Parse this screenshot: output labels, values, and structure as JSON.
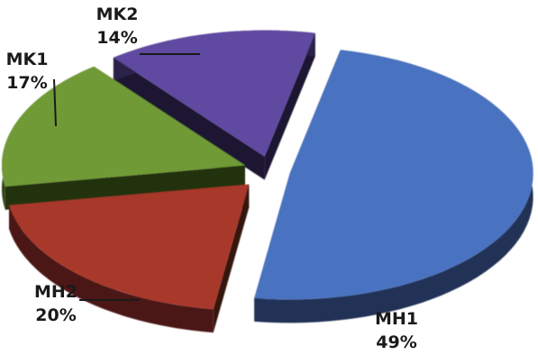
{
  "chart_data": {
    "type": "pie",
    "style": "3d-exploded",
    "slices": [
      {
        "name": "MH1",
        "value": 49,
        "label": "49%",
        "color": "#4a72c0"
      },
      {
        "name": "MH2",
        "value": 20,
        "label": "20%",
        "color": "#a8382a"
      },
      {
        "name": "MK1",
        "value": 17,
        "label": "17%",
        "color": "#6f9a35"
      },
      {
        "name": "MK2",
        "value": 14,
        "label": "14%",
        "color": "#6148a0"
      }
    ],
    "legend": "none"
  }
}
